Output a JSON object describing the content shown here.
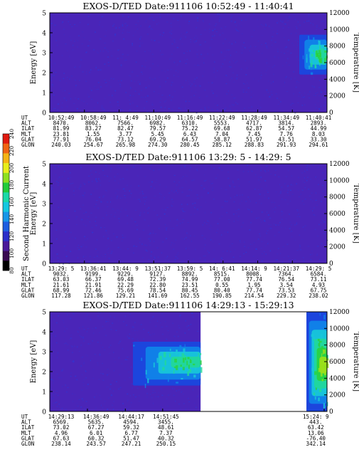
{
  "colorbar": {
    "label": "Second Harmonic Current",
    "ticks": [
      "80",
      "100",
      "120",
      "140",
      "160",
      "180",
      "200",
      "220",
      "240"
    ],
    "colors": [
      "#000000",
      "#3a0a52",
      "#4a1a9a",
      "#2b2fc9",
      "#1e5fe0",
      "#1797e8",
      "#15c8e0",
      "#1ad9a8",
      "#22cc3a",
      "#8fe01e",
      "#e8ee1c",
      "#f5b414",
      "#f06412",
      "#e01a10"
    ]
  },
  "palette": {
    "background": "#4a25b8",
    "speckle": "#2f36d4",
    "feature_colors": [
      "#1848e0",
      "#0f86e8",
      "#18c8d8",
      "#22d89a",
      "#2ad23f",
      "#9be01a"
    ]
  },
  "chart_data": [
    {
      "type": "heatmap",
      "title": "EXOS-D/TED   Date:911106  10:52:49 - 11:40:41",
      "ylabel": "Energy [eV]",
      "y2label": "Temperature [K]",
      "ylim": [
        0,
        5
      ],
      "y2lim": [
        0,
        12000
      ],
      "yticks": [
        "0",
        "1",
        "2",
        "3",
        "4",
        "5"
      ],
      "y2ticks": [
        "0",
        "2000",
        "4000",
        "6000",
        "8000",
        "10000",
        "12000"
      ],
      "features": [
        {
          "t0": 0.9,
          "t1": 1.0,
          "e0": 1.9,
          "e1": 3.9,
          "peak": 3,
          "e_center": 2.9
        }
      ],
      "ephemeris": {
        "labels": [
          "UT",
          "ALT",
          "ILAT",
          "MLT",
          "GLAT",
          "GLON"
        ],
        "columns": [
          [
            "10:52:49",
            "8470.",
            "81.99",
            "23.81",
            "77.91",
            "240.03"
          ],
          [
            "10:58:49",
            "8062.",
            "83.27",
            "1.55",
            "76.04",
            "254.67"
          ],
          [
            "11: 4:49",
            "7566.",
            "82.47",
            "3.77",
            "73.12",
            "265.98"
          ],
          [
            "11:10:49",
            "6982.",
            "79.57",
            "5.45",
            "69.29",
            "274.30"
          ],
          [
            "11:16:49",
            "6310.",
            "75.22",
            "6.43",
            "64.57",
            "280.45"
          ],
          [
            "11:22:49",
            "5553.",
            "69.68",
            "7.04",
            "58.87",
            "285.12"
          ],
          [
            "11:28:49",
            "4717.",
            "62.87",
            "7.45",
            "51.97",
            "288.83"
          ],
          [
            "11:34:49",
            "3814.",
            "54.57",
            "7.76",
            "43.51",
            "291.93"
          ],
          [
            "11:40:41",
            "2893.",
            "44.99",
            "8.03",
            "33.30",
            "294.61"
          ]
        ]
      }
    },
    {
      "type": "heatmap",
      "title": "EXOS-D/TED   Date:911106  13:29: 5 - 14:29: 5",
      "ylabel": "Energy [eV]",
      "y2label": "Temperature [K]",
      "ylim": [
        0,
        5
      ],
      "y2lim": [
        0,
        12000
      ],
      "yticks": [
        "0",
        "1",
        "2",
        "3",
        "4",
        "5"
      ],
      "y2ticks": [
        "0",
        "2000",
        "4000",
        "6000",
        "8000",
        "10000",
        "12000"
      ],
      "features": [],
      "ephemeris": {
        "labels": [
          "UT",
          "ALT",
          "ILAT",
          "MLT",
          "GLAT",
          "GLON"
        ],
        "columns": [
          [
            "13:29: 5",
            "9032.",
            "63.03",
            "21.61",
            "68.99",
            "117.28"
          ],
          [
            "13:36:41",
            "9199.",
            "66.37",
            "21.91",
            "72.46",
            "121.86"
          ],
          [
            "13:44: 9",
            "9229.",
            "69.48",
            "22.29",
            "75.69",
            "129.21"
          ],
          [
            "13:51:37",
            "9127.",
            "72.39",
            "22.80",
            "78.54",
            "141.69"
          ],
          [
            "13:59: 5",
            "8892.",
            "74.99",
            "23.51",
            "80.45",
            "162.55"
          ],
          [
            "14: 6:41",
            "8515.",
            "77.00",
            "0.55",
            "80.40",
            "190.85"
          ],
          [
            "14:14: 9",
            "8008.",
            "77.74",
            "1.95",
            "77.74",
            "214.54"
          ],
          [
            "14:21:37",
            "7364.",
            "76.54",
            "3.54",
            "73.53",
            "229.32"
          ],
          [
            "14:29: 5",
            "6584.",
            "73.11",
            "4.93",
            "67.75",
            "238.02"
          ]
        ]
      }
    },
    {
      "type": "heatmap",
      "title": "EXOS-D/TED   Date:911106  14:29:13 - 15:29:13",
      "ylabel": "Energy [eV]",
      "y2label": "Temperature [K]",
      "ylim": [
        0,
        5
      ],
      "y2lim": [
        0,
        12000
      ],
      "yticks": [
        "0",
        "1",
        "2",
        "3",
        "4",
        "5"
      ],
      "y2ticks": [
        "0",
        "2000",
        "4000",
        "6000",
        "8000",
        "10000",
        "12000"
      ],
      "data_coverage": [
        [
          0,
          0.544
        ],
        [
          0.926,
          1.0
        ]
      ],
      "features": [
        {
          "t0": 0.3,
          "t1": 0.544,
          "e0": 1.3,
          "e1": 3.5,
          "peak": 3,
          "e_center": 2.5
        },
        {
          "t0": 0.926,
          "t1": 1.0,
          "e0": 0.0,
          "e1": 5.0,
          "peak": 5,
          "e_center": 2.3
        }
      ],
      "ephemeris": {
        "labels": [
          "UT",
          "ALT",
          "ILAT",
          "MLT",
          "GLAT",
          "GLON"
        ],
        "columns": [
          [
            "14:29:13",
            "6569.",
            "73.02",
            "4.96",
            "67.63",
            "238.14"
          ],
          [
            "14:36:49",
            "5635.",
            "67.27",
            "6.01",
            "60.32",
            "243.57"
          ],
          [
            "14:44:17",
            "4594.",
            "59.32",
            "6.77",
            "51.47",
            "247.21"
          ],
          [
            "14:51:45",
            "3455.",
            "48.61",
            "7.37",
            "40.32",
            "250.15"
          ],
          [
            "15:24: 9",
            "443.",
            "63.42",
            "13.06",
            "-76.40",
            "342.14"
          ]
        ],
        "column_t": [
          0.0,
          0.1359,
          0.2725,
          0.4073,
          0.9897
        ]
      }
    }
  ]
}
